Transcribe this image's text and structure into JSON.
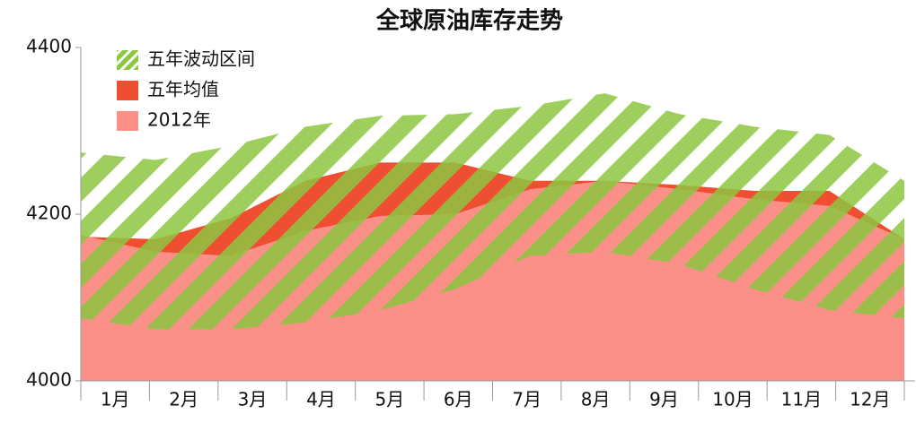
{
  "chart_data": {
    "type": "area",
    "title": "全球原油库存走势",
    "categories": [
      "1月",
      "2月",
      "3月",
      "4月",
      "5月",
      "6月",
      "7月",
      "8月",
      "9月",
      "10月",
      "11月",
      "12月"
    ],
    "range": {
      "name": "五年波动区间",
      "color": "#8dc63f",
      "high": [
        4274,
        4265,
        4282,
        4305,
        4318,
        4320,
        4330,
        4345,
        4320,
        4305,
        4295,
        4240
      ],
      "low": [
        4075,
        4062,
        4062,
        4070,
        4085,
        4110,
        4150,
        4155,
        4140,
        4110,
        4085,
        4075
      ]
    },
    "series": [
      {
        "name": "五年均值",
        "color": "#f04e30",
        "values": [
          4173,
          4170,
          4195,
          4240,
          4262,
          4262,
          4240,
          4240,
          4235,
          4228,
          4228,
          4170
        ]
      },
      {
        "name": "2012年",
        "color": "#fb9088",
        "values": [
          4175,
          4155,
          4150,
          4180,
          4198,
          4200,
          4230,
          4240,
          4230,
          4218,
          4210,
          4170
        ]
      }
    ],
    "ylim": [
      4000,
      4400
    ],
    "yticks": [
      4000,
      4200,
      4400
    ],
    "legend": "upper-left"
  }
}
